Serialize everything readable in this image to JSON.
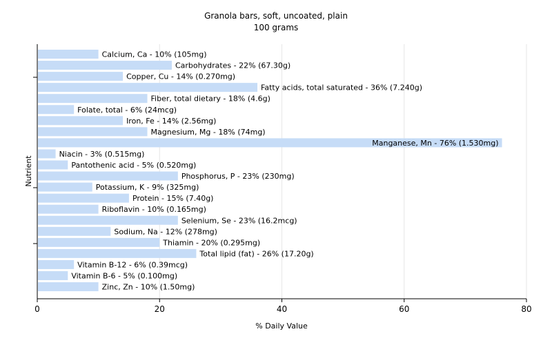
{
  "chart_data": {
    "type": "bar",
    "orientation": "horizontal",
    "title": "Granola bars, soft, uncoated, plain",
    "subtitle": "100 grams",
    "xlabel": "% Daily Value",
    "ylabel": "Nutrient",
    "xlim": [
      0,
      80
    ],
    "xticks": [
      "0",
      "20",
      "40",
      "60",
      "80"
    ],
    "grid": true,
    "colors": {
      "bar": "#c6dcf7",
      "grid": "#e6e6e6",
      "plot_bg": "#ffffff"
    },
    "categories": [
      "Calcium, Ca",
      "Carbohydrates",
      "Copper, Cu",
      "Fatty acids, total saturated",
      "Fiber, total dietary",
      "Folate, total",
      "Iron, Fe",
      "Magnesium, Mg",
      "Manganese, Mn",
      "Niacin",
      "Pantothenic acid",
      "Phosphorus, P",
      "Potassium, K",
      "Protein",
      "Riboflavin",
      "Selenium, Se",
      "Sodium, Na",
      "Thiamin",
      "Total lipid (fat)",
      "Vitamin B-12",
      "Vitamin B-6",
      "Zinc, Zn"
    ],
    "values": [
      10,
      22,
      14,
      36,
      18,
      6,
      14,
      18,
      76,
      3,
      5,
      23,
      9,
      15,
      10,
      23,
      12,
      20,
      26,
      6,
      5,
      10
    ],
    "labels": [
      "Calcium, Ca - 10% (105mg)",
      "Carbohydrates - 22% (67.30g)",
      "Copper, Cu - 14% (0.270mg)",
      "Fatty acids, total saturated - 36% (7.240g)",
      "Fiber, total dietary - 18% (4.6g)",
      "Folate, total - 6% (24mcg)",
      "Iron, Fe - 14% (2.56mg)",
      "Magnesium, Mg - 18% (74mg)",
      "Manganese, Mn - 76% (1.530mg)",
      "Niacin - 3% (0.515mg)",
      "Pantothenic acid - 5% (0.520mg)",
      "Phosphorus, P - 23% (230mg)",
      "Potassium, K - 9% (325mg)",
      "Protein - 15% (7.40g)",
      "Riboflavin - 10% (0.165mg)",
      "Selenium, Se - 23% (16.2mcg)",
      "Sodium, Na - 12% (278mg)",
      "Thiamin - 20% (0.295mg)",
      "Total lipid (fat) - 26% (17.20g)",
      "Vitamin B-12 - 6% (0.39mcg)",
      "Vitamin B-6 - 5% (0.100mg)",
      "Zinc, Zn - 10% (1.50mg)"
    ]
  }
}
